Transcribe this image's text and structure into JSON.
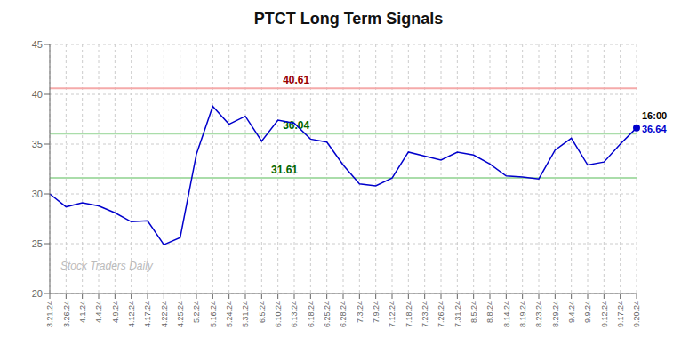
{
  "chart_data": {
    "type": "line",
    "title": "PTCT Long Term Signals",
    "categories": [
      "3.21.24",
      "3.26.24",
      "4.1.24",
      "4.4.24",
      "4.9.24",
      "4.12.24",
      "4.17.24",
      "4.22.24",
      "4.25.24",
      "5.2.24",
      "5.16.24",
      "5.24.24",
      "5.31.24",
      "6.5.24",
      "6.10.24",
      "6.13.24",
      "6.18.24",
      "6.25.24",
      "6.28.24",
      "7.3.24",
      "7.9.24",
      "7.12.24",
      "7.18.24",
      "7.23.24",
      "7.26.24",
      "7.31.24",
      "8.5.24",
      "8.8.24",
      "8.14.24",
      "8.19.24",
      "8.23.24",
      "8.29.24",
      "9.4.24",
      "9.9.24",
      "9.12.24",
      "9.17.24",
      "9.20.24"
    ],
    "values": [
      30.0,
      28.7,
      29.1,
      28.8,
      28.1,
      27.2,
      27.3,
      24.9,
      25.6,
      34.0,
      38.8,
      37.0,
      37.8,
      35.3,
      37.4,
      37.1,
      35.5,
      35.2,
      32.9,
      31.0,
      30.8,
      31.6,
      34.2,
      33.8,
      33.4,
      34.2,
      33.9,
      33.0,
      31.8,
      31.7,
      31.5,
      34.4,
      35.6,
      32.9,
      33.2,
      35.0,
      36.64
    ],
    "color": "#0000cc",
    "ylim": [
      20,
      45
    ],
    "yticks": [
      20,
      25,
      30,
      35,
      40,
      45
    ],
    "grid": true,
    "reference_lines": [
      {
        "value": 40.61,
        "label": "40.61",
        "color": "#f5aaaa",
        "label_color": "#990000"
      },
      {
        "value": 36.04,
        "label": "36.04",
        "color": "#aaddaa",
        "label_color": "#006600"
      },
      {
        "value": 31.61,
        "label": "31.61",
        "color": "#aaddaa",
        "label_color": "#006600"
      }
    ],
    "last_point": {
      "label": "16:00",
      "value_label": "36.64",
      "value_label_color": "#0000cc"
    },
    "watermark": "Stock Traders Daily",
    "watermark_color": "#bbbbbb"
  }
}
